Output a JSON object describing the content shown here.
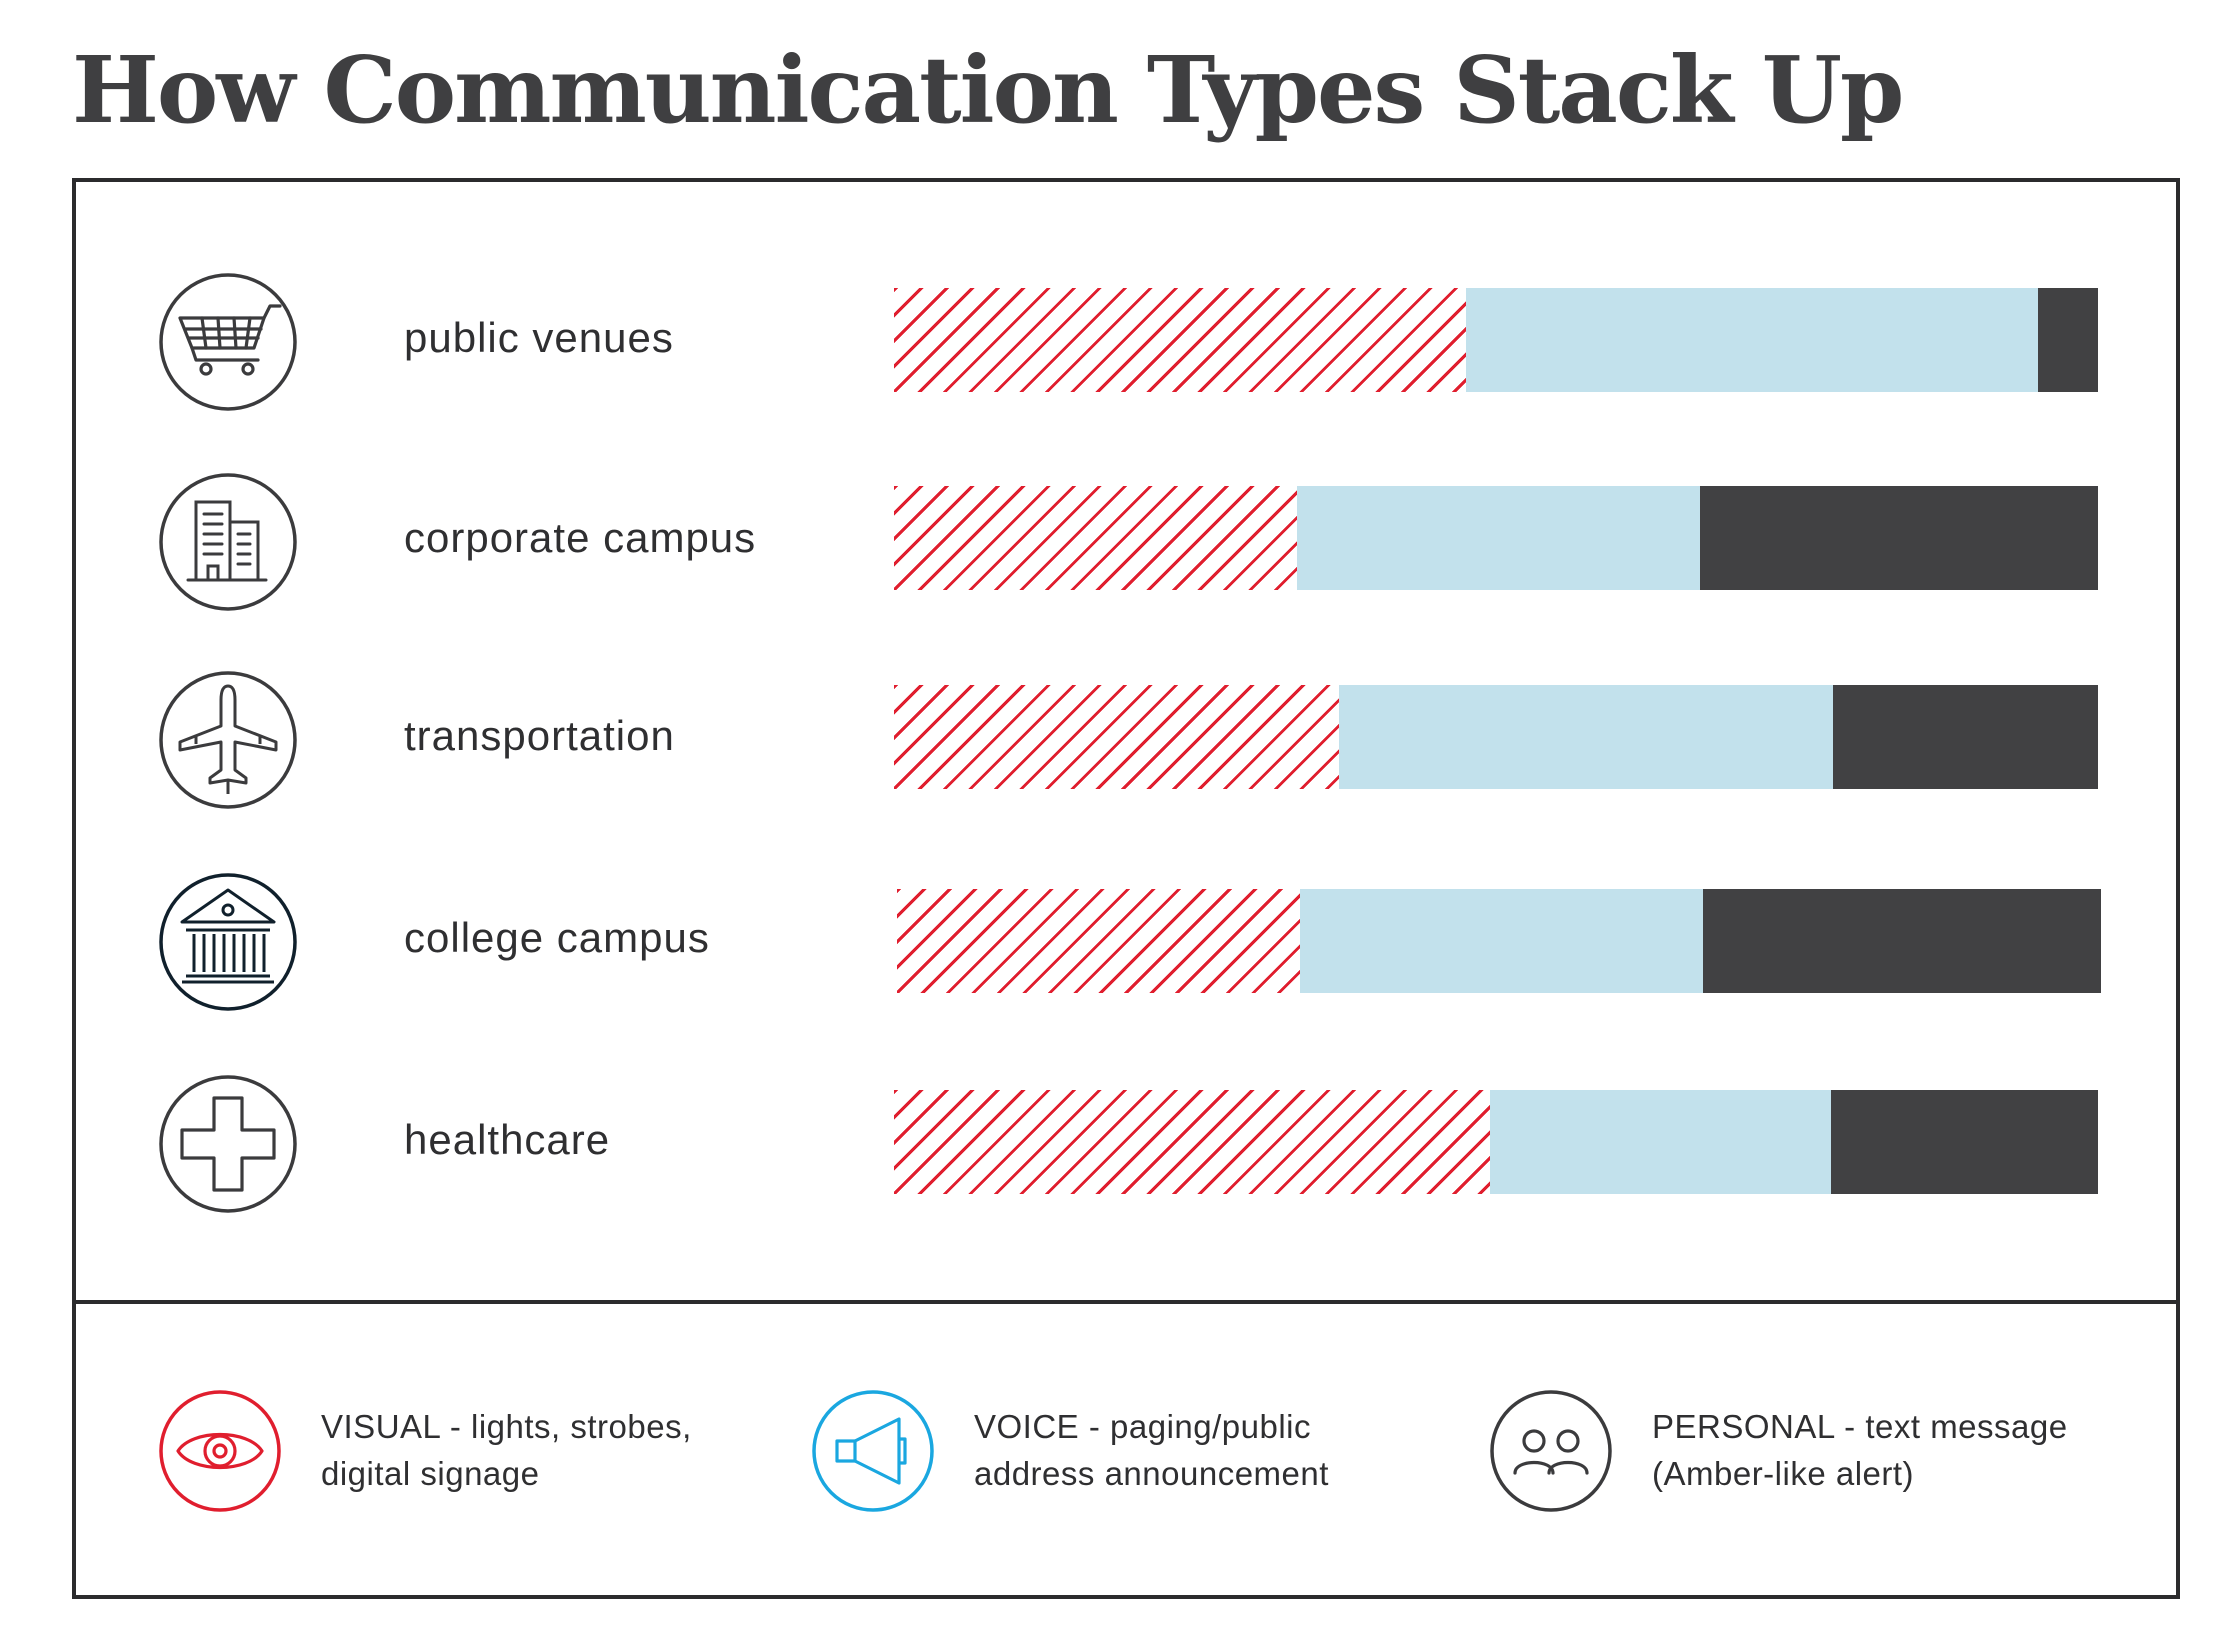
{
  "title": "How Communication Types Stack Up",
  "chart_data": {
    "type": "bar",
    "orientation": "horizontal",
    "stacked": true,
    "normalized": true,
    "categories": [
      "public venues",
      "corporate campus",
      "transportation",
      "college campus",
      "healthcare"
    ],
    "series": [
      {
        "name": "VISUAL",
        "color": "#e01e2e",
        "pattern": "hatched",
        "values": [
          0.475,
          0.335,
          0.37,
          0.335,
          0.495
        ]
      },
      {
        "name": "VOICE",
        "color": "#c2e1ec",
        "values": [
          0.475,
          0.335,
          0.41,
          0.335,
          0.283
        ]
      },
      {
        "name": "PERSONAL",
        "color": "#414143",
        "values": [
          0.05,
          0.33,
          0.22,
          0.33,
          0.222
        ]
      }
    ],
    "xlim": [
      0,
      1
    ],
    "grid": false,
    "legend_position": "bottom"
  },
  "rows": [
    {
      "label": "public venues",
      "icon": "shopping-cart-icon"
    },
    {
      "label": "corporate campus",
      "icon": "office-building-icon"
    },
    {
      "label": "transportation",
      "icon": "airplane-icon"
    },
    {
      "label": "college campus",
      "icon": "university-building-icon"
    },
    {
      "label": "healthcare",
      "icon": "medical-cross-icon"
    }
  ],
  "legend": [
    {
      "name": "VISUAL",
      "text": "VISUAL - lights, strobes,\ndigital signage",
      "icon": "eye-icon",
      "color": "#e01e2e"
    },
    {
      "name": "VOICE",
      "text": "VOICE - paging/public\naddress announcement",
      "icon": "megaphone-icon",
      "color": "#1aa7e0"
    },
    {
      "name": "PERSONAL",
      "text": "PERSONAL - text message\n(Amber-like alert)",
      "icon": "people-icon",
      "color": "#3b3b3d"
    }
  ]
}
